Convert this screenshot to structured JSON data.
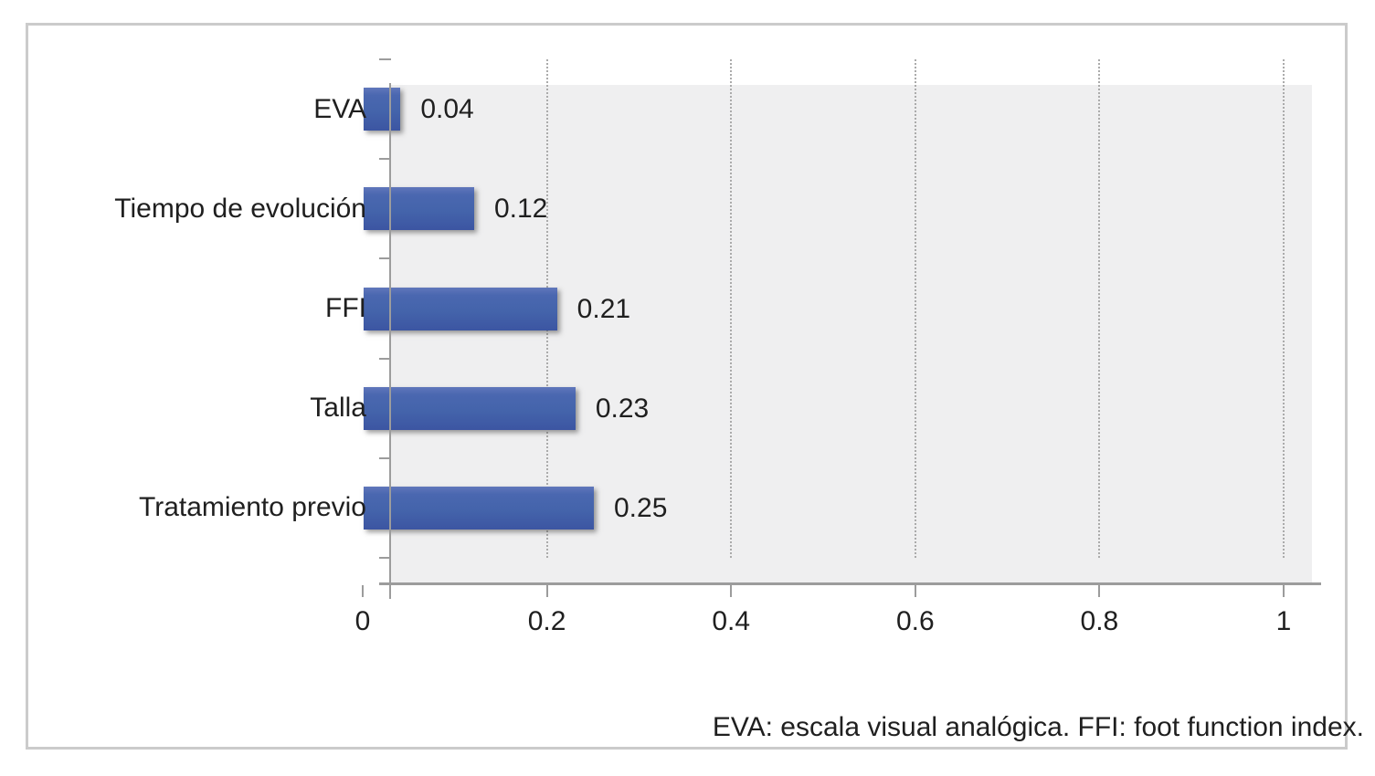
{
  "chart_data": {
    "type": "bar",
    "orientation": "horizontal",
    "categories": [
      "EVA",
      "Tiempo de evolución",
      "FFI",
      "Talla",
      "Tratamiento previo"
    ],
    "values": [
      0.04,
      0.12,
      0.21,
      0.23,
      0.25
    ],
    "data_labels": [
      "0.04",
      "0.12",
      "0.21",
      "0.23",
      "0.25"
    ],
    "x_tick_labels": [
      "0",
      "0.2",
      "0.4",
      "0.6",
      "0.8",
      "1"
    ],
    "x_tick_values": [
      0,
      0.2,
      0.4,
      0.6,
      0.8,
      1
    ],
    "xlim": [
      0,
      1
    ],
    "title": "",
    "xlabel": "",
    "ylabel": "",
    "legend": "none",
    "grid": "vertical-dotted",
    "footnote": "EVA: escala visual analógica. FFI: foot function index.",
    "colors": {
      "bar": "#4464ab",
      "plot_background": "#efeff0",
      "gridline": "#ababab",
      "axis": "#9c9c9c",
      "text": "#1f1f1f",
      "frame_border": "#cbcbcb"
    }
  }
}
